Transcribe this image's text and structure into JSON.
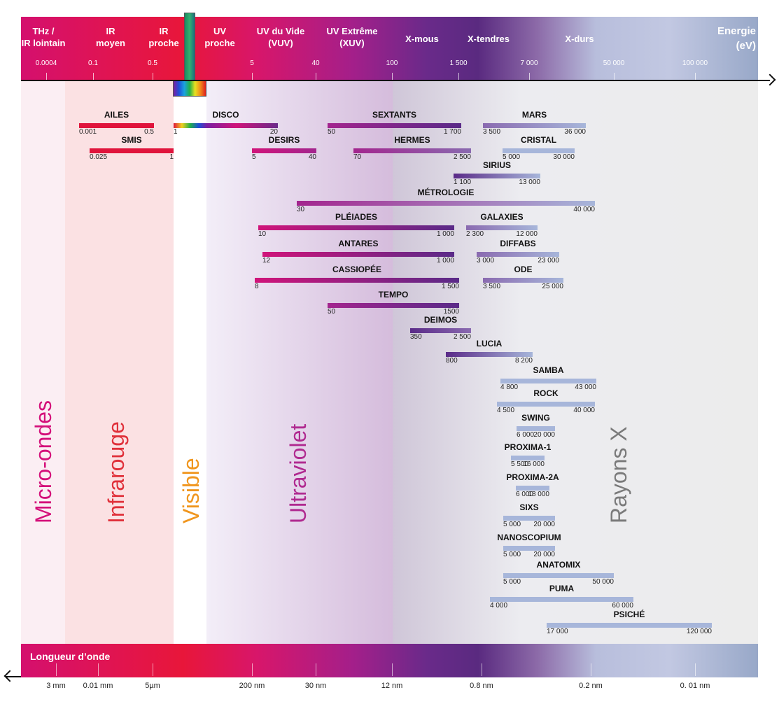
{
  "header": {
    "energy_label": "Energie\n(eV)",
    "regions": [
      "THz /\nIR lointain",
      "IR\nmoyen",
      "IR\nproche",
      "UV\nproche",
      "UV du Vide\n(VUV)",
      "UV Extrême\n(XUV)",
      "X-mous",
      "X-tendres",
      "X-durs"
    ],
    "energy_ticks": [
      "0.0004",
      "0.1",
      "0.5",
      "5",
      "40",
      "100",
      "1 500",
      "7 000",
      "50 000",
      "100 000"
    ]
  },
  "footer": {
    "wavelength_label": "Longueur d’onde",
    "wavelength_ticks": [
      "3 mm",
      "0.01 mm",
      "5µm",
      "200 nm",
      "30 nm",
      "12 nm",
      "0.8 nm",
      "0.2 nm",
      "0. 01 nm"
    ]
  },
  "domains": [
    "Micro-ondes",
    "Infrarouge",
    "Visible",
    "Ultraviolet",
    "Rayons X"
  ],
  "beamlines": [
    {
      "name": "AILES",
      "min": "0.001",
      "max": "0.5"
    },
    {
      "name": "DISCO",
      "min": "1",
      "max": "20"
    },
    {
      "name": "SEXTANTS",
      "min": "50",
      "max": "1 700"
    },
    {
      "name": "MARS",
      "min": "3 500",
      "max": "36 000"
    },
    {
      "name": "SMIS",
      "min": "0.025",
      "max": "1"
    },
    {
      "name": "DESIRS",
      "min": "5",
      "max": "40"
    },
    {
      "name": "HERMES",
      "min": "70",
      "max": "2 500"
    },
    {
      "name": "CRISTAL",
      "min": "5 000",
      "max": "30 000"
    },
    {
      "name": "SIRIUS",
      "min": "1 100",
      "max": "13 000"
    },
    {
      "name": "MÉTROLOGIE",
      "min": "30",
      "max": "40 000"
    },
    {
      "name": "PLÉIADES",
      "min": "10",
      "max": "1 000"
    },
    {
      "name": "GALAXIES",
      "min": "2 300",
      "max": "12 000"
    },
    {
      "name": "ANTARES",
      "min": "12",
      "max": "1 000"
    },
    {
      "name": "DIFFABS",
      "min": "3 000",
      "max": "23 000"
    },
    {
      "name": "CASSIOPÉE",
      "min": "8",
      "max": "1 500"
    },
    {
      "name": "ODE",
      "min": "3 500",
      "max": "25 000"
    },
    {
      "name": "TEMPO",
      "min": "50",
      "max": "1500"
    },
    {
      "name": "DEIMOS",
      "min": "350",
      "max": "2 500"
    },
    {
      "name": "LUCIA",
      "min": "800",
      "max": "8 200"
    },
    {
      "name": "SAMBA",
      "min": "4 800",
      "max": "43 000"
    },
    {
      "name": "ROCK",
      "min": "4 500",
      "max": "40 000"
    },
    {
      "name": "SWING",
      "min": "6 000",
      "max": "20 000"
    },
    {
      "name": "PROXIMA-1",
      "min": "5 500",
      "max": "16 000"
    },
    {
      "name": "PROXIMA-2A",
      "min": "6 000",
      "max": "18 000"
    },
    {
      "name": "SIXS",
      "min": "5 000",
      "max": "20 000"
    },
    {
      "name": "NANOSCOPIUM",
      "min": "5 000",
      "max": "20 000"
    },
    {
      "name": "ANATOMIX",
      "min": "5 000",
      "max": "50 000"
    },
    {
      "name": "PUMA",
      "min": "4 000",
      "max": "60 000"
    },
    {
      "name": "PSICHÉ",
      "min": "17 000",
      "max": "120 000"
    }
  ]
}
